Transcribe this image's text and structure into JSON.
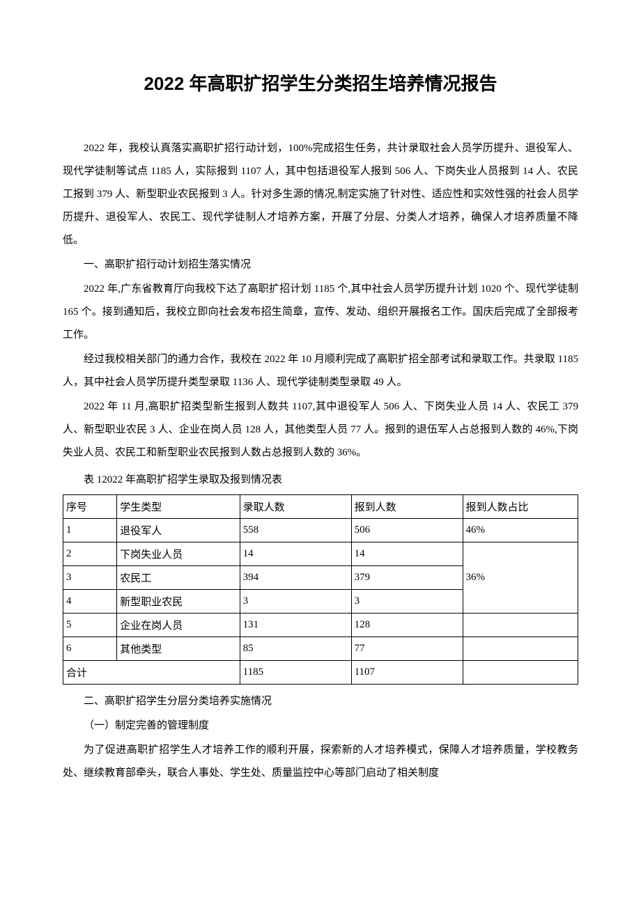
{
  "title": "2022 年高职扩招学生分类招生培养情况报告",
  "paragraphs": {
    "p1": "2022 年，我校认真落实高职扩招行动计划，100%完成招生任务，共计录取社会人员学历提升、退役军人、现代学徒制等试点 1185 人，实际报到 1107 人，其中包括退役军人报到 506 人、下岗失业人员报到 14 人、农民工报到 379 人、新型职业农民报到 3 人。针对多生源的情况,制定实施了针对性、适应性和实效性强的社会人员学历提升、退役军人、农民工、现代学徒制人才培养方案，开展了分层、分类人才培养，确保人才培养质量不降低。",
    "h1": "一、高职扩招行动计划招生落实情况",
    "p2": "2022 年,广东省教育厅向我校下达了高职扩招计划 1185 个,其中社会人员学历提升计划 1020 个、现代学徒制 165 个。接到通知后，我校立即向社会发布招生简章，宣传、发动、组织开展报名工作。国庆后完成了全部报考工作。",
    "p3": "经过我校相关部门的通力合作，我校在 2022 年 10 月顺利完成了高职扩招全部考试和录取工作。共录取 1185 人，其中社会人员学历提升类型录取 1136 人、现代学徒制类型录取 49 人。",
    "p4": "2022 年 11 月,高职扩招类型新生报到人数共 1107,其中退役军人 506 人、下岗失业人员 14 人、农民工 379 人、新型职业农民 3 人、企业在岗人员 128 人，其他类型人员 77 人。报到的退伍军人占总报到人数的 46%,下岗失业人员、农民工和新型职业农民报到人数占总报到人数的 36%。",
    "table_caption": "表 12022 年高职扩招学生录取及报到情况表",
    "h2": "二、高职扩招学生分层分类培养实施情况",
    "sub1": "（一）制定完善的管理制度",
    "p5": "为了促进高职扩招学生人才培养工作的顺利开展，探索新的人才培养模式，保障人才培养质量，学校教务处、继续教育部牵头，联合人事处、学生处、质量监控中心等部门启动了相关制度"
  },
  "table": {
    "headers": {
      "seq": "序号",
      "type": "学生类型",
      "admit": "录取人数",
      "report": "报到人数",
      "ratio": "报到人数占比"
    },
    "rows": [
      {
        "seq": "1",
        "type": "退役军人",
        "admit": "558",
        "report": "506",
        "ratio": "46%"
      },
      {
        "seq": "2",
        "type": "下岗失业人员",
        "admit": "14",
        "report": "14",
        "ratio": ""
      },
      {
        "seq": "3",
        "type": "农民工",
        "admit": "394",
        "report": "379",
        "ratio": "36%"
      },
      {
        "seq": "4",
        "type": "新型职业农民",
        "admit": "3",
        "report": "3",
        "ratio": ""
      },
      {
        "seq": "5",
        "type": "企业在岗人员",
        "admit": "131",
        "report": "128",
        "ratio": ""
      },
      {
        "seq": "6",
        "type": "其他类型",
        "admit": "85",
        "report": "77",
        "ratio": ""
      }
    ],
    "total": {
      "label": "合计",
      "admit": "1185",
      "report": "1107",
      "ratio": ""
    },
    "styling": {
      "border_color": "#000000",
      "background_color": "#ffffff",
      "font_size": 15,
      "cell_padding": 6,
      "merged_ratio_group": {
        "start_row": 1,
        "span": 3,
        "value": "36%"
      }
    }
  },
  "colors": {
    "text": "#000000",
    "background": "#ffffff",
    "border": "#000000"
  },
  "typography": {
    "title_fontsize": 26,
    "body_fontsize": 15,
    "line_height": 2.2,
    "font_family": "SimSun"
  }
}
